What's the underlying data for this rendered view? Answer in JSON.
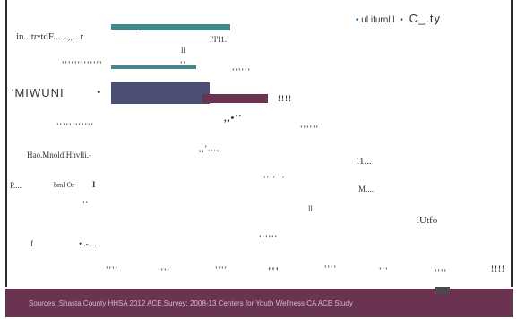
{
  "legend": {
    "item1": "ul ifurnl.l",
    "item2": "C_.ty",
    "dot_color": "#1f5f9a"
  },
  "labels": {
    "row1": "in...tr•tdF......,,...r",
    "row1_value": "I'I'I1.",
    "row1_mark": "ll",
    "row2": "'''''''''''''",
    "row2_value": "''",
    "row2_right": "''''''",
    "row3": "'MIWUNI",
    "row3_bullet": "•",
    "row3_right": "!!!!",
    "row4": "''''''''''''",
    "row4_mid": ",,•''",
    "row4_right": "''''''",
    "row5": "Hao.MnoldlHnvlli.-",
    "row5_mid": ",,'....",
    "row5_right": "l1...",
    "row6": "P....",
    "row6_b": "bml Or",
    "row6_c": "I",
    "row6_mid": "'''' ''",
    "row6_right": "M....",
    "row7_mark": "''",
    "row7_mid": "ll",
    "row7_right": "iUtfo",
    "row8": "f",
    "row8_b": "• .-....",
    "row8_mid": "''''''"
  },
  "axis_ticks": [
    "''''",
    "''''",
    "''''",
    "'''",
    "''''",
    "'''",
    "''''",
    "!!!!"
  ],
  "footer": {
    "source": "Sources: Shasta County HHSA 2012 ACE Survey; 2008-13 Centers for Youth Wellness CA ACE Study"
  },
  "colors": {
    "teal": "#3f8a8e",
    "slate": "#4a4f73",
    "plum": "#6b3352",
    "footer_bg": "#6b3352"
  },
  "chart_data": {
    "type": "bar",
    "orientation": "horizontal",
    "categories": [
      "in...tr•tdF......,,...r",
      "'''''''''''''",
      "'MIWUNI",
      "''''''''''''",
      "Hao.MnoldlHnvlli.-",
      "P....",
      "",
      "f"
    ],
    "series": [
      {
        "values": [
          8,
          0,
          0,
          0,
          0,
          0,
          0,
          0
        ]
      },
      {
        "values": [
          14,
          13,
          0,
          0,
          0,
          0,
          0,
          0
        ]
      },
      {
        "values": [
          0,
          0,
          15,
          0,
          0,
          0,
          0,
          0
        ]
      },
      {
        "values": [
          0,
          0,
          10,
          0,
          0,
          0,
          0,
          0
        ]
      }
    ],
    "xlim": [
      0,
      40
    ],
    "legend_position": "top-right",
    "grid": false
  }
}
